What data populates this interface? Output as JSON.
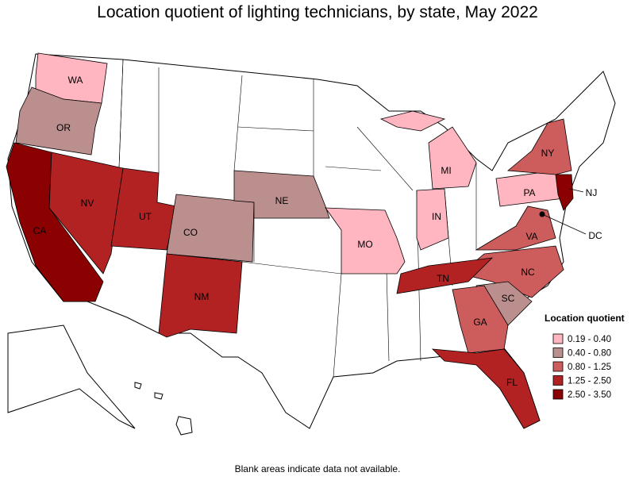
{
  "title": "Location quotient of lighting technicians, by state, May 2022",
  "legend": {
    "title": "Location quotient",
    "items": [
      {
        "label": "0.19 - 0.40",
        "color": "#ffb6c1"
      },
      {
        "label": "0.40 - 0.80",
        "color": "#bc8f8f"
      },
      {
        "label": "0.80 - 1.25",
        "color": "#cd5c5c"
      },
      {
        "label": "1.25 - 2.50",
        "color": "#b22222"
      },
      {
        "label": "2.50 - 3.50",
        "color": "#8b0000"
      }
    ]
  },
  "states": [
    {
      "label": "WA",
      "class": 0
    },
    {
      "label": "OR",
      "class": 1
    },
    {
      "label": "CA",
      "class": 4
    },
    {
      "label": "NV",
      "class": 3
    },
    {
      "label": "UT",
      "class": 3
    },
    {
      "label": "CO",
      "class": 1
    },
    {
      "label": "NM",
      "class": 3
    },
    {
      "label": "NE",
      "class": 1
    },
    {
      "label": "MO",
      "class": 0
    },
    {
      "label": "MI",
      "class": 0
    },
    {
      "label": "IN",
      "class": 0
    },
    {
      "label": "PA",
      "class": 0
    },
    {
      "label": "NY",
      "class": 2
    },
    {
      "label": "NJ",
      "class": 4
    },
    {
      "label": "VA",
      "class": 2
    },
    {
      "label": "NC",
      "class": 2
    },
    {
      "label": "SC",
      "class": 1
    },
    {
      "label": "GA",
      "class": 2
    },
    {
      "label": "TN",
      "class": 3
    },
    {
      "label": "FL",
      "class": 3
    },
    {
      "label": "DC",
      "class": 4
    }
  ],
  "note": "Blank areas indicate data not available."
}
